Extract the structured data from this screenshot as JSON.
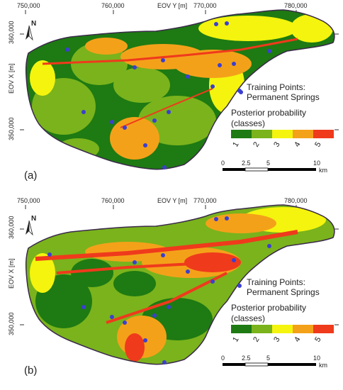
{
  "axes": {
    "x_ticks": [
      "750,000",
      "760,000",
      "770,000",
      "780,000"
    ],
    "x_label": "EOV Y [m]",
    "y_ticks": [
      "360,000",
      "350,000"
    ],
    "y_label": "EOV X [m]"
  },
  "north_label": "N",
  "legend": {
    "training_points": "Training Points:",
    "permanent_springs": "Permanent Springs",
    "posterior_title": "Posterior probability",
    "posterior_subtitle": "(classes)",
    "classes": [
      "1",
      "2",
      "3",
      "4",
      "5"
    ],
    "class_colors": [
      "#1e7a12",
      "#7ab31c",
      "#f4f40e",
      "#f4a11a",
      "#ef3a1c"
    ]
  },
  "scalebar": {
    "ticks": [
      "0",
      "2.5",
      "5",
      "10"
    ],
    "unit": "km"
  },
  "panels": [
    {
      "label": "(a)"
    },
    {
      "label": "(b)"
    }
  ]
}
